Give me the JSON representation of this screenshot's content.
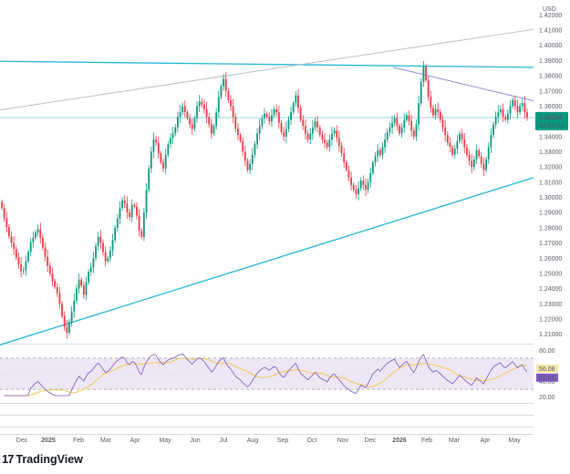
{
  "chart_data": [
    {
      "type": "candlestick",
      "currency": "USD",
      "price_axis": [
        "1.42000",
        "1.41000",
        "1.40000",
        "1.39000",
        "1.38000",
        "1.37000",
        "1.36000",
        "1.35000",
        "1.34000",
        "1.33000",
        "1.32000",
        "1.31000",
        "1.30000",
        "1.29000",
        "1.28000",
        "1.27000",
        "1.26000",
        "1.25000",
        "1.24000",
        "1.23000",
        "1.22000",
        "1.21000"
      ],
      "ylim": [
        1.205,
        1.425
      ],
      "time_axis": [
        "Dec",
        "2025",
        "Feb",
        "Mar",
        "Apr",
        "May",
        "Jun",
        "Jul",
        "Aug",
        "Sep",
        "Oct",
        "Nov",
        "Dec",
        "2026",
        "Feb",
        "Mar",
        "Apr",
        "May"
      ],
      "last_price": "1.35254",
      "countdown": "16:54:33",
      "last_price_color": "#089981",
      "up_color": "#089981",
      "down_color": "#f23645",
      "bars_close": [
        1.293,
        1.2865,
        1.2805,
        1.2745,
        1.27,
        1.266,
        1.2605,
        1.256,
        1.2515,
        1.252,
        1.258,
        1.264,
        1.2705,
        1.2735,
        1.277,
        1.279,
        1.2735,
        1.267,
        1.261,
        1.255,
        1.25,
        1.245,
        1.241,
        1.237,
        1.23,
        1.222,
        1.215,
        1.211,
        1.218,
        1.225,
        1.232,
        1.24,
        1.246,
        1.242,
        1.236,
        1.244,
        1.251,
        1.254,
        1.26,
        1.268,
        1.274,
        1.27,
        1.264,
        1.258,
        1.26,
        1.265,
        1.272,
        1.28,
        1.286,
        1.293,
        1.298,
        1.296,
        1.29,
        1.287,
        1.295,
        1.294,
        1.288,
        1.278,
        1.274,
        1.29,
        1.305,
        1.319,
        1.33,
        1.338,
        1.336,
        1.329,
        1.323,
        1.319,
        1.328,
        1.335,
        1.339,
        1.342,
        1.346,
        1.353,
        1.356,
        1.36,
        1.356,
        1.352,
        1.348,
        1.345,
        1.352,
        1.36,
        1.363,
        1.361,
        1.358,
        1.353,
        1.348,
        1.342,
        1.347,
        1.356,
        1.366,
        1.373,
        1.378,
        1.37,
        1.364,
        1.36,
        1.353,
        1.345,
        1.341,
        1.337,
        1.33,
        1.324,
        1.318,
        1.322,
        1.328,
        1.335,
        1.342,
        1.347,
        1.352,
        1.355,
        1.353,
        1.35,
        1.354,
        1.358,
        1.356,
        1.349,
        1.343,
        1.34,
        1.345,
        1.351,
        1.356,
        1.362,
        1.367,
        1.359,
        1.351,
        1.347,
        1.342,
        1.338,
        1.342,
        1.346,
        1.35,
        1.346,
        1.341,
        1.338,
        1.336,
        1.333,
        1.338,
        1.342,
        1.344,
        1.339,
        1.334,
        1.329,
        1.323,
        1.318,
        1.313,
        1.308,
        1.305,
        1.302,
        1.306,
        1.311,
        1.308,
        1.305,
        1.31,
        1.316,
        1.323,
        1.327,
        1.331,
        1.328,
        1.333,
        1.338,
        1.343,
        1.346,
        1.349,
        1.352,
        1.347,
        1.342,
        1.346,
        1.351,
        1.354,
        1.35,
        1.344,
        1.34,
        1.348,
        1.362,
        1.376,
        1.386,
        1.377,
        1.366,
        1.359,
        1.354,
        1.358,
        1.356,
        1.351,
        1.346,
        1.341,
        1.336,
        1.333,
        1.328,
        1.332,
        1.337,
        1.342,
        1.338,
        1.333,
        1.328,
        1.324,
        1.32,
        1.325,
        1.331,
        1.327,
        1.322,
        1.318,
        1.325,
        1.333,
        1.341,
        1.348,
        1.353,
        1.356,
        1.358,
        1.353,
        1.351,
        1.355,
        1.36,
        1.364,
        1.36,
        1.356,
        1.36,
        1.362,
        1.356,
        1.3525
      ],
      "trendlines": [
        {
          "color": "#22b6d6",
          "from": [
            0,
            1.3895
          ],
          "to": [
            1,
            1.3855
          ]
        },
        {
          "color": "#22b6d6",
          "from": [
            0,
            1.203
          ],
          "to": [
            1,
            1.313
          ]
        },
        {
          "color": "#b9bec8",
          "from": [
            0,
            1.3575
          ],
          "to": [
            1,
            1.4105
          ]
        },
        {
          "color": "#8f8fd6",
          "from": [
            0.737,
            1.3855
          ],
          "to": [
            1,
            1.3635
          ]
        },
        {
          "color": "#9ad7e3",
          "from": [
            0,
            1.3525
          ],
          "to": [
            1,
            1.3525
          ]
        }
      ]
    },
    {
      "type": "line",
      "indicator": "RSI",
      "axis": [
        "80.00",
        "40.00",
        "20.00"
      ],
      "ylim": [
        15,
        85
      ],
      "bands": [
        70,
        30
      ],
      "rsi_value": "56.08",
      "ma_value": "51.81",
      "rsi_color": "#7e57c2",
      "ma_color": "#f2c94c",
      "badge_rsi_color": "#f3e8a6",
      "badge_ma_color": "#7e57c2",
      "band_fill": "#ede7f6"
    }
  ],
  "branding": {
    "mark": "17",
    "name": "TradingView"
  }
}
